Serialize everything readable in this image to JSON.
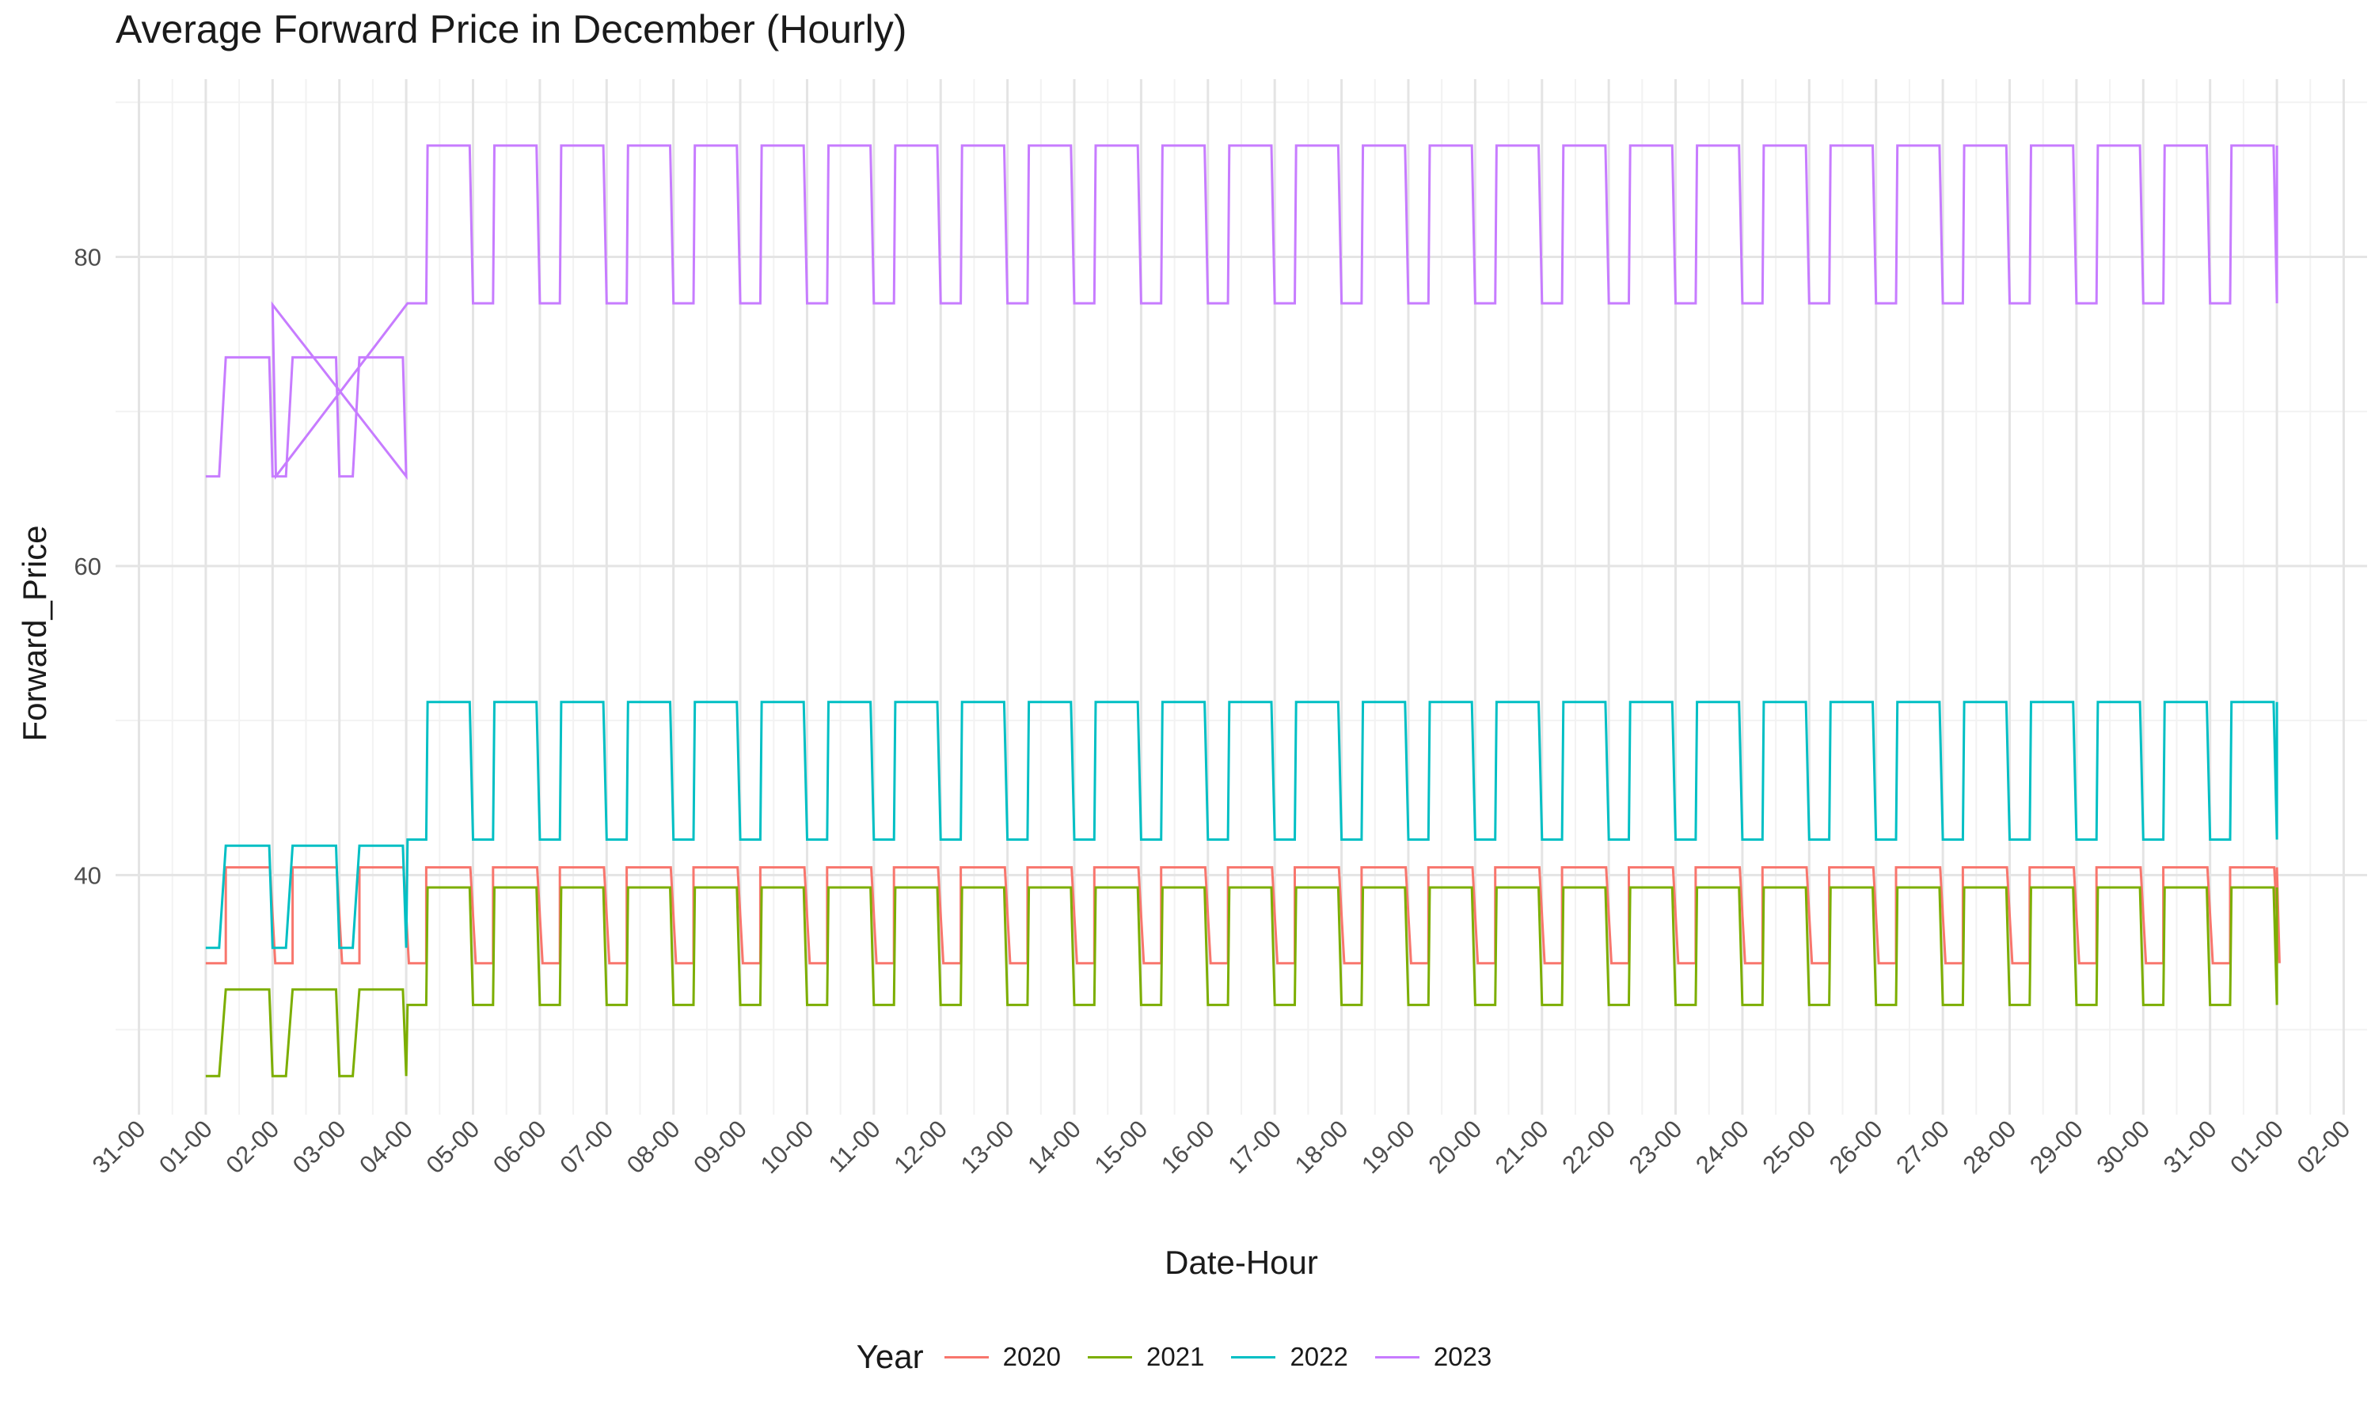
{
  "chart_data": {
    "type": "line",
    "title": "Average Forward Price in December (Hourly)",
    "xlabel": "Date-Hour",
    "ylabel": "Forward_Price",
    "ylim": [
      24.5,
      91.5
    ],
    "y_ticks": [
      40,
      60,
      80
    ],
    "x_ticks": [
      "31-00",
      "01-00",
      "02-00",
      "03-00",
      "04-00",
      "05-00",
      "06-00",
      "07-00",
      "08-00",
      "09-00",
      "10-00",
      "11-00",
      "12-00",
      "13-00",
      "14-00",
      "15-00",
      "16-00",
      "17-00",
      "18-00",
      "19-00",
      "20-00",
      "21-00",
      "22-00",
      "23-00",
      "24-00",
      "25-00",
      "26-00",
      "27-00",
      "28-00",
      "29-00",
      "30-00",
      "31-00",
      "01-00",
      "02-00"
    ],
    "x_range_days": [
      -1.35,
      32.35
    ],
    "grid": true,
    "legend": {
      "title": "Year",
      "position": "bottom"
    },
    "series": [
      {
        "name": "2020",
        "color": "#F8766D",
        "off_peak": 34.3,
        "peak": 40.5,
        "segments": [
          [
            0,
            34.3
          ],
          [
            0.3,
            40.5
          ],
          [
            1,
            34.3
          ]
        ],
        "pattern_note": "daily step: off-peak 00-07h, peak 07-23h"
      },
      {
        "name": "2021",
        "color": "#7CAE00",
        "off_peak": 31.6,
        "peak": 39.2,
        "early_low": 27.0,
        "early_mid": 32.6
      },
      {
        "name": "2022",
        "color": "#00BFC4",
        "off_peak": 42.3,
        "peak": 51.2,
        "early_low": 35.3,
        "early_mid": 41.9
      },
      {
        "name": "2023",
        "color": "#C77CFF",
        "off_peak": 77.0,
        "peak": 87.2,
        "early_low": 65.8,
        "early_mid": 73.5,
        "spike": 76.9
      }
    ]
  }
}
